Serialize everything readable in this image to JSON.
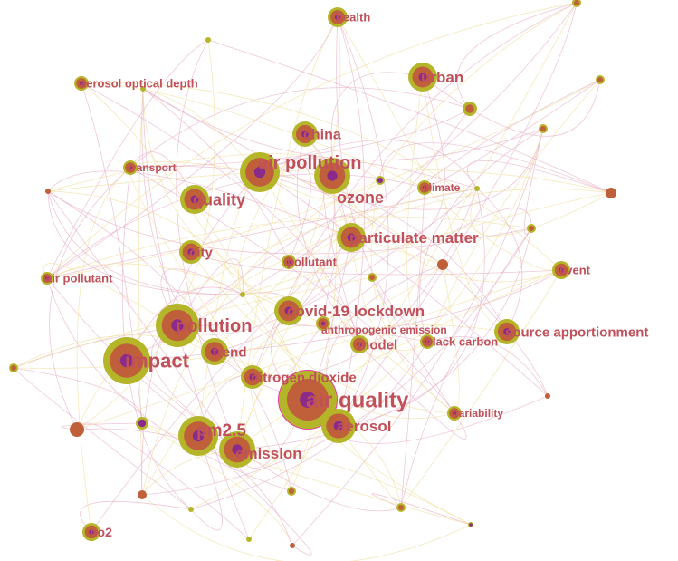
{
  "network": {
    "colors": {
      "outer_ring": "#b5b52a",
      "inner_ring": "#c0603a",
      "core": "#8a2a8a",
      "label": "#c0505a",
      "edge_pink": "#e8b0c8",
      "edge_yellow": "#f0e0a0"
    },
    "keywords": [
      "health",
      "aerosol optical depth",
      "urban",
      "china",
      "transport",
      "air pollution",
      "ozone",
      "climate",
      "quality",
      "particulate matter",
      "city",
      "pollutant",
      "air pollutant",
      "covid-19 lockdown",
      "anthropogenic emission",
      "pollution",
      "event",
      "model",
      "black carbon",
      "source apportionment",
      "impact",
      "trend",
      "nitrogen dioxide",
      "air quality",
      "aerosol",
      "pm2.5",
      "emission",
      "variability",
      "no2"
    ]
  }
}
